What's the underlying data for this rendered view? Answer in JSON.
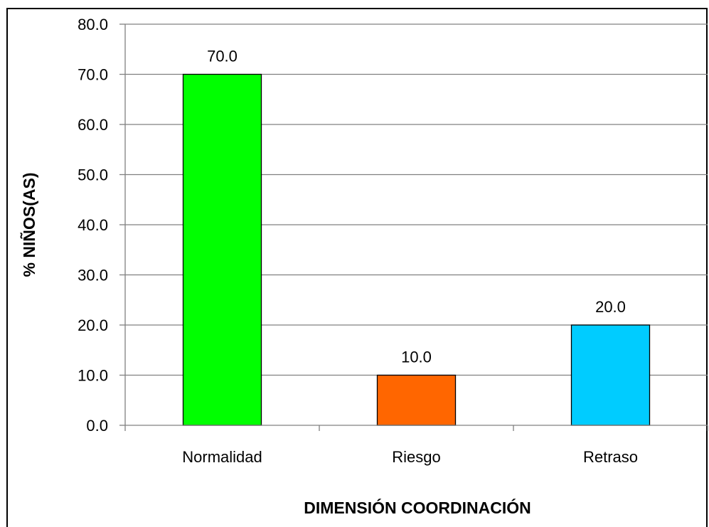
{
  "chart_data": {
    "type": "bar",
    "categories": [
      "Normalidad",
      "Riesgo",
      "Retraso"
    ],
    "values": [
      70.0,
      10.0,
      20.0
    ],
    "data_labels": [
      "70.0",
      "10.0",
      "20.0"
    ],
    "bar_colors": [
      "#00FF00",
      "#FF6600",
      "#00CCFF"
    ],
    "xlabel": "DIMENSIÓN COORDINACIÓN",
    "ylabel": "% NIÑOS(AS)",
    "ylim": [
      0,
      80
    ],
    "yticks": [
      "0.0",
      "10.0",
      "20.0",
      "30.0",
      "40.0",
      "50.0",
      "60.0",
      "70.0",
      "80.0"
    ],
    "grid": true,
    "legend": "none"
  }
}
